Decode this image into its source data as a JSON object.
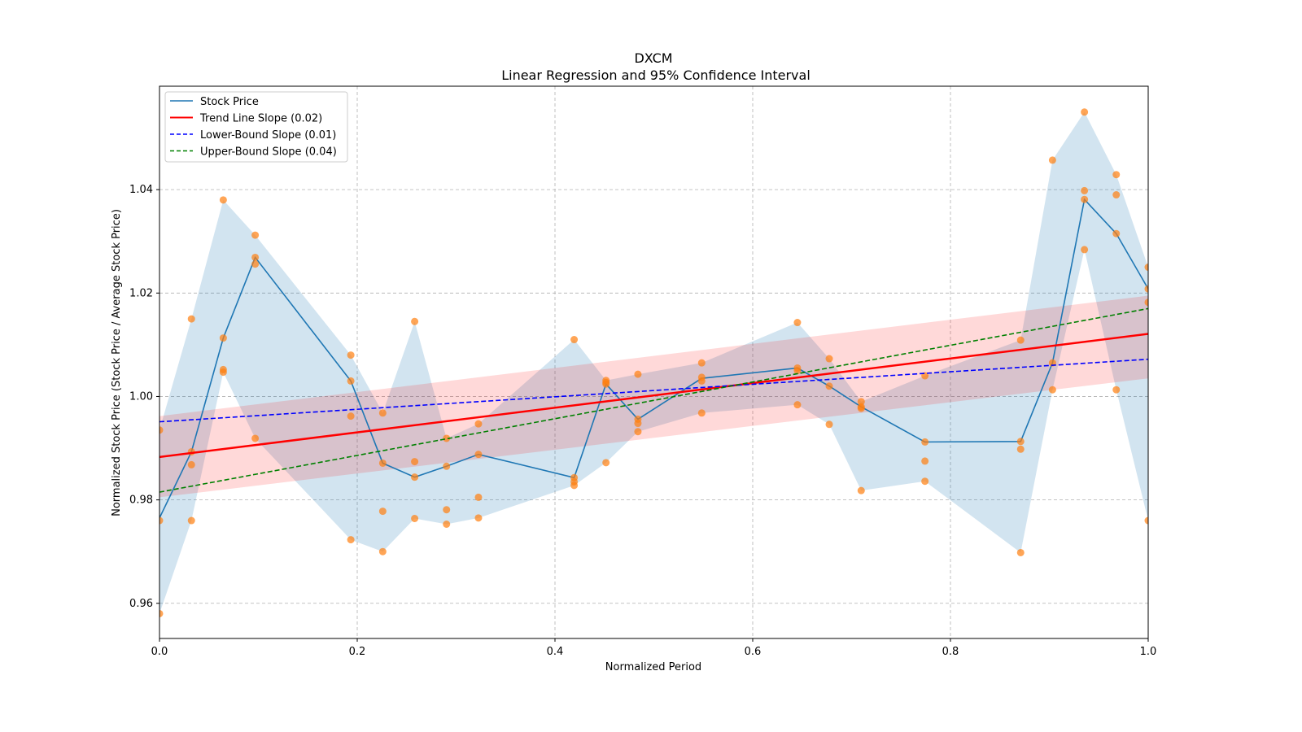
{
  "chart_data": {
    "type": "line",
    "title": "DXCM",
    "subtitle": "Linear Regression and 95% Confidence Interval",
    "xlabel": "Normalized Period",
    "ylabel": "Normalized Stock Price (Stock Price / Average Stock Price)",
    "xlim": [
      0.0,
      1.0
    ],
    "ylim": [
      0.9532,
      1.06
    ],
    "xticks": [
      0.0,
      0.2,
      0.4,
      0.6,
      0.8,
      1.0
    ],
    "xtick_labels": [
      "0.0",
      "0.2",
      "0.4",
      "0.6",
      "0.8",
      "1.0"
    ],
    "yticks": [
      0.96,
      0.98,
      1.0,
      1.02,
      1.04
    ],
    "ytick_labels": [
      "0.96",
      "0.98",
      "1.00",
      "1.02",
      "1.04"
    ],
    "grid": true,
    "legend_position": "top-left",
    "colors": {
      "stock": "#1f77b4",
      "scatter": "#ff7f0e",
      "band": "#1f77b4",
      "trend": "#ff0000",
      "trend_band": "#ff0000",
      "lower": "#0000ff",
      "upper": "#008000"
    },
    "legend": [
      {
        "label": "Stock Price",
        "style": "solid",
        "color_key": "stock"
      },
      {
        "label": "Trend Line Slope (0.02)",
        "style": "solid",
        "color_key": "trend"
      },
      {
        "label": "Lower-Bound Slope (0.01)",
        "style": "dashed",
        "color_key": "lower"
      },
      {
        "label": "Upper-Bound Slope (0.04)",
        "style": "dashed",
        "color_key": "upper"
      }
    ],
    "x": [
      0.0,
      0.0323,
      0.0645,
      0.0968,
      0.1935,
      0.2258,
      0.2581,
      0.2903,
      0.3226,
      0.4194,
      0.4516,
      0.4839,
      0.5484,
      0.6452,
      0.6774,
      0.7097,
      0.7742,
      0.871,
      0.9032,
      0.9355,
      0.9677,
      1.0
    ],
    "series": [
      {
        "name": "Stock Price",
        "values": [
          0.9765,
          0.9893,
          1.0113,
          1.0269,
          1.003,
          0.9871,
          0.9844,
          0.9865,
          0.9888,
          0.9843,
          1.0024,
          0.9956,
          1.0035,
          1.0055,
          1.002,
          0.998,
          0.9912,
          0.9913,
          1.0065,
          1.0381,
          1.0315,
          1.0208
        ]
      }
    ],
    "scatter_points": [
      [
        0.0,
        [
          0.9935,
          0.976,
          0.958
        ]
      ],
      [
        0.0323,
        [
          1.015,
          0.9893,
          0.9868,
          0.976
        ]
      ],
      [
        0.0645,
        [
          1.038,
          1.0113,
          1.0052,
          1.0047
        ]
      ],
      [
        0.0968,
        [
          1.0312,
          1.0269,
          1.0256,
          0.9919
        ]
      ],
      [
        0.1935,
        [
          1.008,
          1.003,
          0.9962,
          0.9723
        ]
      ],
      [
        0.2258,
        [
          0.9968,
          0.9871,
          0.9778,
          0.97
        ]
      ],
      [
        0.2581,
        [
          1.0145,
          0.9874,
          0.9844,
          0.9764
        ]
      ],
      [
        0.2903,
        [
          0.9919,
          0.9865,
          0.9781,
          0.9753
        ]
      ],
      [
        0.3226,
        [
          0.9947,
          0.9888,
          0.9805,
          0.9765
        ]
      ],
      [
        0.4194,
        [
          1.011,
          0.9843,
          0.9835,
          0.9828
        ]
      ],
      [
        0.4516,
        [
          1.0031,
          1.0027,
          1.0024,
          0.9872
        ]
      ],
      [
        0.4839,
        [
          1.0043,
          0.9956,
          0.9948,
          0.9932
        ]
      ],
      [
        0.5484,
        [
          1.0065,
          1.0037,
          1.003,
          0.9968
        ]
      ],
      [
        0.6452,
        [
          1.0143,
          1.0055,
          1.005,
          0.9984
        ]
      ],
      [
        0.6774,
        [
          1.0073,
          1.002,
          0.9946
        ]
      ],
      [
        0.7097,
        [
          0.999,
          0.998,
          0.9977,
          0.9818
        ]
      ],
      [
        0.7742,
        [
          1.004,
          0.9912,
          0.9875,
          0.9836
        ]
      ],
      [
        0.871,
        [
          1.0109,
          0.9913,
          0.9898,
          0.9698
        ]
      ],
      [
        0.9032,
        [
          1.0457,
          1.0065,
          1.0013
        ]
      ],
      [
        0.9355,
        [
          1.055,
          1.0398,
          1.0381,
          1.0284
        ]
      ],
      [
        0.9677,
        [
          1.0429,
          1.039,
          1.0315,
          1.0013
        ]
      ],
      [
        1.0,
        [
          1.025,
          1.0208,
          1.0182,
          0.976
        ]
      ]
    ],
    "trend_line": {
      "slope": 0.02,
      "y_start": 0.9883,
      "y_end": 1.0121,
      "ci_lower": [
        0.9805,
        1.0035
      ],
      "ci_upper": [
        0.9962,
        1.0195
      ]
    },
    "lower_bound_line": {
      "slope": 0.01,
      "y_start": 0.9951,
      "y_end": 1.0072
    },
    "upper_bound_line": {
      "slope": 0.04,
      "y_start": 0.9815,
      "y_end": 1.017
    }
  }
}
